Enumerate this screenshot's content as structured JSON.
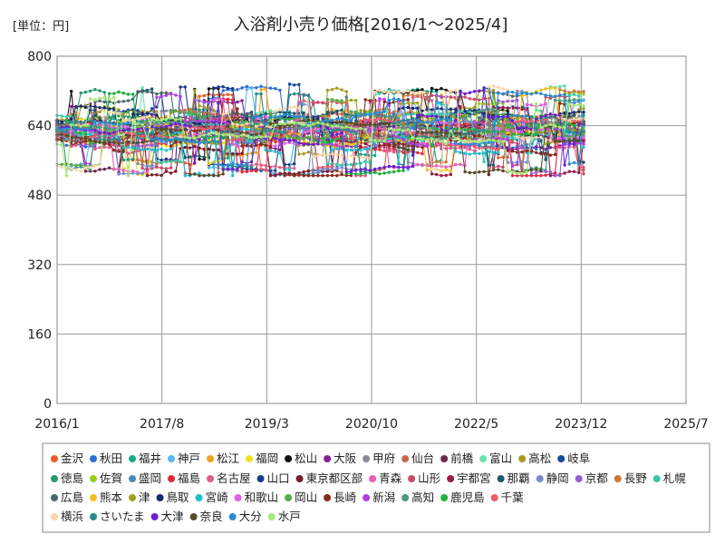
{
  "chart_data": {
    "type": "line",
    "title": "入浴剤小売り価格[2016/1～2025/4]",
    "unit_label": "[単位：円]",
    "xlabel": "",
    "ylabel": "",
    "x_range": [
      "2016/1",
      "2025/7"
    ],
    "x_ticks": [
      "2016/1",
      "2017/8",
      "2019/3",
      "2020/10",
      "2022/5",
      "2023/12",
      "2025/7"
    ],
    "ylim": [
      0,
      800
    ],
    "y_ticks": [
      "0",
      "160",
      "320",
      "480",
      "640",
      "800"
    ],
    "grid": true,
    "legend_position": "bottom",
    "series": [
      {
        "name": "金沢",
        "color": "#ee5a2a",
        "base": 640
      },
      {
        "name": "秋田",
        "color": "#2a6fd6",
        "base": 632
      },
      {
        "name": "福井",
        "color": "#1aa88a",
        "base": 648
      },
      {
        "name": "神戸",
        "color": "#5ab8ee",
        "base": 636
      },
      {
        "name": "松江",
        "color": "#f2a31a",
        "base": 644
      },
      {
        "name": "福岡",
        "color": "#f0e022",
        "base": 620
      },
      {
        "name": "松山",
        "color": "#111111",
        "base": 646
      },
      {
        "name": "大阪",
        "color": "#8a1a9a",
        "base": 618
      },
      {
        "name": "甲府",
        "color": "#8a8a9a",
        "base": 640
      },
      {
        "name": "仙台",
        "color": "#c8684a",
        "base": 622
      },
      {
        "name": "前橋",
        "color": "#6a2a4a",
        "base": 630
      },
      {
        "name": "富山",
        "color": "#6ae0b0",
        "base": 642
      },
      {
        "name": "高松",
        "color": "#a89a2a",
        "base": 652
      },
      {
        "name": "岐阜",
        "color": "#1a4a9a",
        "base": 648
      },
      {
        "name": "徳島",
        "color": "#2a9a6a",
        "base": 634
      },
      {
        "name": "佐賀",
        "color": "#9acd1a",
        "base": 628
      },
      {
        "name": "盛岡",
        "color": "#4a8aba",
        "base": 626
      },
      {
        "name": "福島",
        "color": "#e02a3a",
        "base": 612
      },
      {
        "name": "名古屋",
        "color": "#e05a8a",
        "base": 616
      },
      {
        "name": "山口",
        "color": "#1a3a8a",
        "base": 650
      },
      {
        "name": "東京都区部",
        "color": "#7a1a2a",
        "base": 608
      },
      {
        "name": "青森",
        "color": "#ee5ab8",
        "base": 630
      },
      {
        "name": "山形",
        "color": "#c84a6a",
        "base": 624
      },
      {
        "name": "宇都宮",
        "color": "#9a1a4a",
        "base": 614
      },
      {
        "name": "那覇",
        "color": "#1a5a6a",
        "base": 638
      },
      {
        "name": "静岡",
        "color": "#7a8ad0",
        "base": 626
      },
      {
        "name": "京都",
        "color": "#9a5ad0",
        "base": 620
      },
      {
        "name": "長野",
        "color": "#c8783a",
        "base": 636
      },
      {
        "name": "札幌",
        "color": "#3ac8a8",
        "base": 644
      },
      {
        "name": "広島",
        "color": "#4a6a6a",
        "base": 634
      },
      {
        "name": "熊本",
        "color": "#f0c020",
        "base": 630
      },
      {
        "name": "津",
        "color": "#a0a020",
        "base": 628
      },
      {
        "name": "鳥取",
        "color": "#1a2a6a",
        "base": 652
      },
      {
        "name": "宮崎",
        "color": "#20c0d0",
        "base": 610
      },
      {
        "name": "和歌山",
        "color": "#e060e0",
        "base": 626
      },
      {
        "name": "岡山",
        "color": "#5aaa4a",
        "base": 640
      },
      {
        "name": "長崎",
        "color": "#8a2a1a",
        "base": 612
      },
      {
        "name": "新潟",
        "color": "#b040e0",
        "base": 624
      },
      {
        "name": "高知",
        "color": "#4a9a7a",
        "base": 636
      },
      {
        "name": "鹿児島",
        "color": "#20b040",
        "base": 628
      },
      {
        "name": "千葉",
        "color": "#ee5a6a",
        "base": 622
      },
      {
        "name": "横浜",
        "color": "#f8d8a8",
        "base": 640
      },
      {
        "name": "さいたま",
        "color": "#2a8a8a",
        "base": 634
      },
      {
        "name": "大津",
        "color": "#6a20d0",
        "base": 630
      },
      {
        "name": "奈良",
        "color": "#5a4a2a",
        "base": 618
      },
      {
        "name": "大分",
        "color": "#2a8ad0",
        "base": 632
      },
      {
        "name": "水戸",
        "color": "#a8e878",
        "base": 620
      }
    ]
  }
}
